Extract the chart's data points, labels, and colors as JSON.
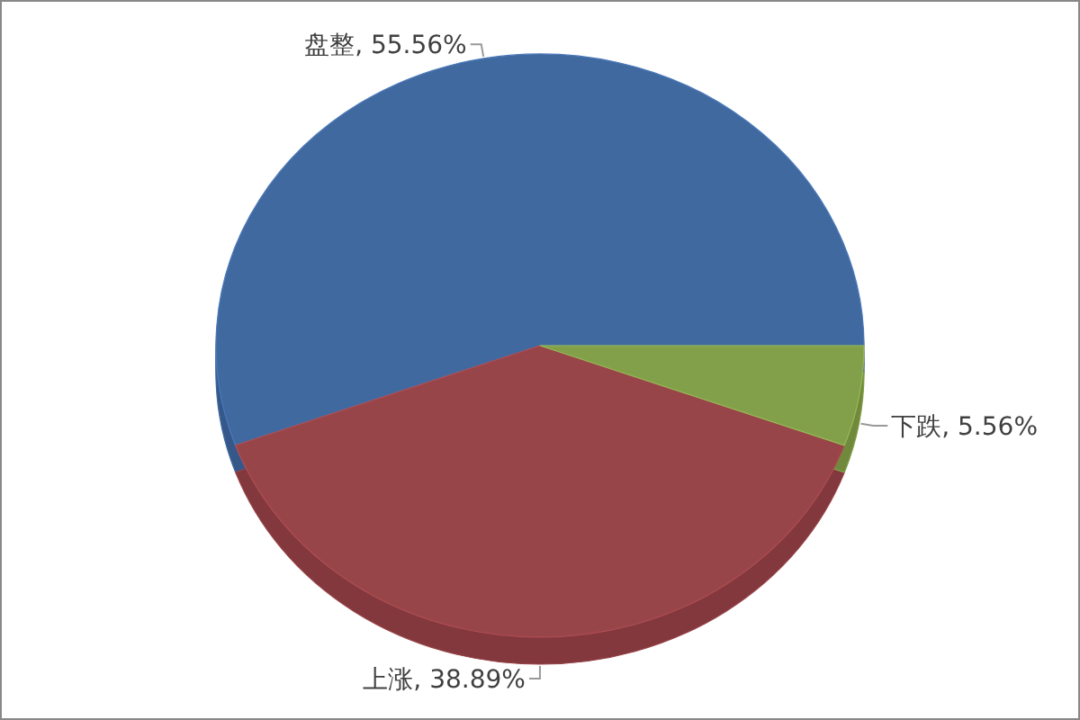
{
  "chart_data": {
    "type": "pie",
    "categories": [
      "盘整",
      "上涨",
      "下跌"
    ],
    "values": [
      55.56,
      38.89,
      5.56
    ],
    "colors": [
      "#4169a0",
      "#984448",
      "#82a04a"
    ],
    "value_labels": [
      "55.56%",
      "38.89%",
      "5.56%"
    ]
  }
}
